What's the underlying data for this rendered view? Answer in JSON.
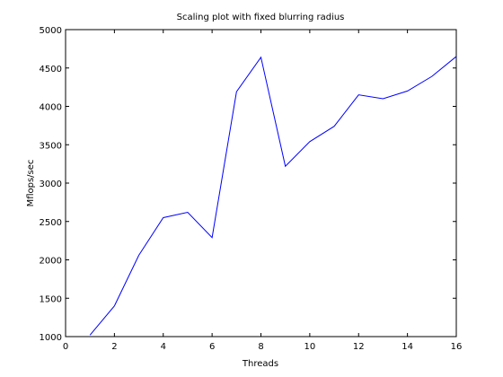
{
  "chart_data": {
    "type": "line",
    "title": "Scaling plot with fixed blurring radius",
    "xlabel": "Threads",
    "ylabel": "Mflops/sec",
    "xlim": [
      0,
      16
    ],
    "ylim": [
      1000,
      5000
    ],
    "xticks": [
      0,
      2,
      4,
      6,
      8,
      10,
      12,
      14,
      16
    ],
    "yticks": [
      1000,
      1500,
      2000,
      2500,
      3000,
      3500,
      4000,
      4500,
      5000
    ],
    "grid": false,
    "line_color": "#0000ff",
    "series": [
      {
        "x": [
          1,
          2,
          3,
          4,
          5,
          6,
          7,
          8,
          9,
          10,
          11,
          12,
          13,
          14,
          15,
          16
        ],
        "values": [
          1020,
          1400,
          2060,
          2550,
          2620,
          2290,
          4190,
          4640,
          3220,
          3540,
          3740,
          4150,
          4100,
          4200,
          4390,
          4650
        ]
      }
    ]
  }
}
